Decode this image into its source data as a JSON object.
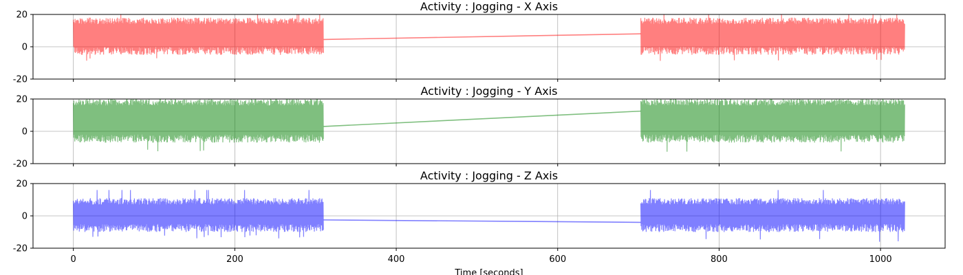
{
  "chart_data": [
    {
      "type": "line",
      "title": "Activity : Jogging - X Axis",
      "xlim": [
        -50,
        1080
      ],
      "ylim": [
        -20,
        20
      ],
      "yticks": [
        20,
        0,
        -20
      ],
      "xticks": [
        0,
        200,
        400,
        600,
        800,
        1000
      ],
      "color": "#ff0000",
      "alpha": 0.5,
      "grid": true,
      "segments": [
        {
          "x_start": 0,
          "x_end": 310,
          "band_low": -5,
          "band_high": 18,
          "spike_low": -9,
          "spike_high": 20
        },
        {
          "x_start": 703,
          "x_end": 1030,
          "band_low": -5,
          "band_high": 18,
          "spike_low": -10,
          "spike_high": 20
        }
      ],
      "gap_line": {
        "x": [
          310,
          703
        ],
        "y": [
          4.5,
          8
        ]
      }
    },
    {
      "type": "line",
      "title": "Activity : Jogging - Y Axis",
      "xlim": [
        -50,
        1080
      ],
      "ylim": [
        -20,
        20
      ],
      "yticks": [
        20,
        0,
        -20
      ],
      "xticks": [
        0,
        200,
        400,
        600,
        800,
        1000
      ],
      "color": "#008000",
      "alpha": 0.5,
      "grid": true,
      "segments": [
        {
          "x_start": 0,
          "x_end": 310,
          "band_low": -7,
          "band_high": 20,
          "spike_low": -13,
          "spike_high": 20
        },
        {
          "x_start": 703,
          "x_end": 1030,
          "band_low": -7,
          "band_high": 20,
          "spike_low": -13,
          "spike_high": 20
        }
      ],
      "gap_line": {
        "x": [
          310,
          703
        ],
        "y": [
          3,
          12.5
        ]
      }
    },
    {
      "type": "line",
      "title": "Activity : Jogging - Z Axis",
      "xlim": [
        -50,
        1080
      ],
      "ylim": [
        -20,
        20
      ],
      "yticks": [
        20,
        0,
        -20
      ],
      "xticks": [
        0,
        200,
        400,
        600,
        800,
        1000
      ],
      "xticklabels": [
        "0",
        "200",
        "400",
        "600",
        "800",
        "1000"
      ],
      "xlabel": "Time [seconds]",
      "color": "#0000ff",
      "alpha": 0.5,
      "grid": true,
      "segments": [
        {
          "x_start": 0,
          "x_end": 310,
          "band_low": -10,
          "band_high": 11,
          "spike_low": -14,
          "spike_high": 16
        },
        {
          "x_start": 703,
          "x_end": 1030,
          "band_low": -10,
          "band_high": 11,
          "spike_low": -16,
          "spike_high": 16
        }
      ],
      "gap_line": {
        "x": [
          310,
          703
        ],
        "y": [
          -2.5,
          -4
        ]
      }
    }
  ]
}
